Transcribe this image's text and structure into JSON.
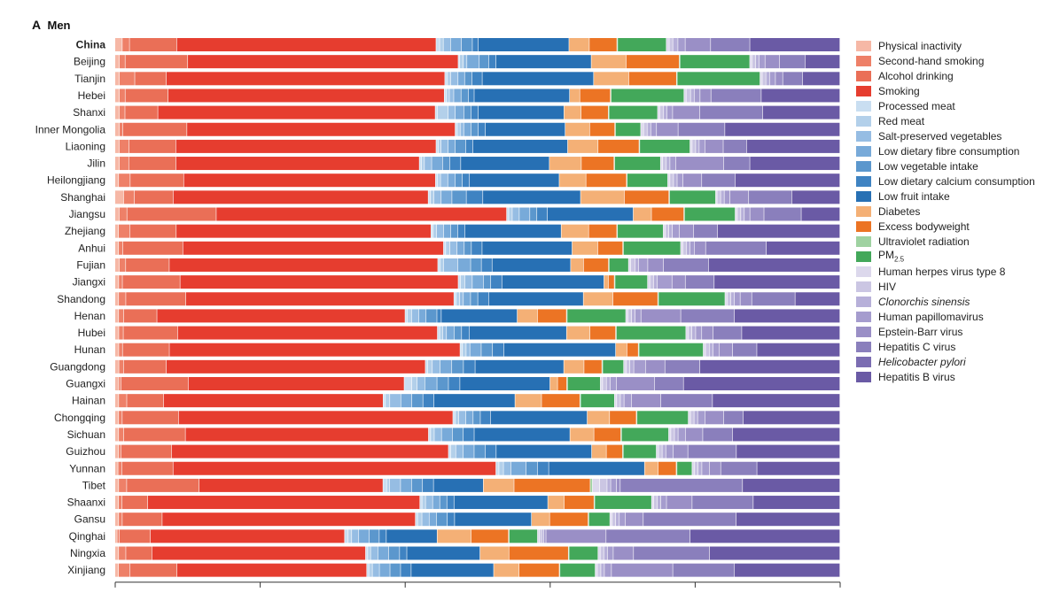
{
  "panel": {
    "letter": "A",
    "title": "Men"
  },
  "colors": {
    "Physical inactivity": "#f6b8a6",
    "Second-hand smoking": "#ee8068",
    "Alcohol drinking": "#ea6f57",
    "Smoking": "#e63d2f",
    "Processed meat": "#c9def1",
    "Red meat": "#b3d0ea",
    "Salt-preserved vegetables": "#96bde3",
    "Low dietary fibre consumption": "#78aad9",
    "Low vegetable intake": "#5b97cd",
    "Low dietary calcium consumption": "#3f83c2",
    "Low fruit intake": "#2770b4",
    "Diabetes": "#f4b076",
    "Excess bodyweight": "#ec7424",
    "Ultraviolet radiation": "#9fd2a1",
    "PM2.5": "#43a85a",
    "Human herpes virus type 8": "#dcd8ec",
    "HIV": "#cbc6e3",
    "Clonorchis sinensis": "#b7b0d9",
    "Human papillomavirus": "#a59cce",
    "Epstein-Barr virus": "#9a8fc6",
    "Hepatitis C virus": "#8a7fbc",
    "Helicobacter pylori": "#7b6db2",
    "Hepatitis B virus": "#6a5aa5"
  },
  "legend": [
    {
      "key": "Physical inactivity",
      "label": "Physical inactivity"
    },
    {
      "key": "Second-hand smoking",
      "label": "Second-hand smoking"
    },
    {
      "key": "Alcohol drinking",
      "label": "Alcohol drinking"
    },
    {
      "key": "Smoking",
      "label": "Smoking"
    },
    {
      "key": "Processed meat",
      "label": "Processed meat"
    },
    {
      "key": "Red meat",
      "label": "Red meat"
    },
    {
      "key": "Salt-preserved vegetables",
      "label": "Salt-preserved vegetables"
    },
    {
      "key": "Low dietary fibre consumption",
      "label": "Low dietary fibre consumption"
    },
    {
      "key": "Low vegetable intake",
      "label": "Low vegetable intake"
    },
    {
      "key": "Low dietary calcium consumption",
      "label": "Low dietary calcium consumption"
    },
    {
      "key": "Low fruit intake",
      "label": "Low fruit intake"
    },
    {
      "key": "Diabetes",
      "label": "Diabetes"
    },
    {
      "key": "Excess bodyweight",
      "label": "Excess bodyweight"
    },
    {
      "key": "Ultraviolet radiation",
      "label": "Ultraviolet radiation"
    },
    {
      "key": "PM2.5",
      "label": "PM",
      "sub": "2.5"
    },
    {
      "key": "Human herpes virus type 8",
      "label": "Human herpes virus type 8"
    },
    {
      "key": "HIV",
      "label": "HIV"
    },
    {
      "key": "Clonorchis sinensis",
      "label": "Clonorchis sinensis",
      "italic": true
    },
    {
      "key": "Human papillomavirus",
      "label": "Human papillomavirus"
    },
    {
      "key": "Epstein-Barr virus",
      "label": "Epstein-Barr virus"
    },
    {
      "key": "Hepatitis C virus",
      "label": "Hepatitis C virus"
    },
    {
      "key": "Helicobacter pylori",
      "label": "Helicobacter pylori",
      "italic": true
    },
    {
      "key": "Hepatitis B virus",
      "label": "Hepatitis B virus"
    }
  ],
  "chart_data": {
    "type": "bar",
    "orientation": "horizontal",
    "stacked": true,
    "xlim": [
      0,
      100
    ],
    "xticks": [
      0,
      20,
      40,
      60,
      80,
      100
    ],
    "xtick_labels_shown": false,
    "categories": [
      "China",
      "Beijing",
      "Tianjin",
      "Hebei",
      "Shanxi",
      "Inner Mongolia",
      "Liaoning",
      "Jilin",
      "Heilongjiang",
      "Shanghai",
      "Jiangsu",
      "Zhejiang",
      "Anhui",
      "Fujian",
      "Jiangxi",
      "Shandong",
      "Henan",
      "Hubei",
      "Hunan",
      "Guangdong",
      "Guangxi",
      "Hainan",
      "Chongqing",
      "Sichuan",
      "Guizhou",
      "Yunnan",
      "Tibet",
      "Shaanxi",
      "Gansu",
      "Qinghai",
      "Ningxia",
      "Xinjiang"
    ],
    "bold_categories": [
      "China"
    ],
    "series_order": [
      "Physical inactivity",
      "Second-hand smoking",
      "Alcohol drinking",
      "Smoking",
      "Processed meat",
      "Red meat",
      "Salt-preserved vegetables",
      "Low dietary fibre consumption",
      "Low vegetable intake",
      "Low dietary calcium consumption",
      "Low fruit intake",
      "Diabetes",
      "Excess bodyweight",
      "Ultraviolet radiation",
      "PM2.5",
      "Human herpes virus type 8",
      "HIV",
      "Clonorchis sinensis",
      "Human papillomavirus",
      "Epstein-Barr virus",
      "Hepatitis C virus",
      "Helicobacter pylori",
      "Hepatitis B virus"
    ],
    "rows": [
      [
        1.0,
        1.0,
        6.5,
        35.7,
        0.5,
        0.5,
        1.0,
        1.5,
        1.5,
        0.8,
        12.5,
        2.8,
        3.8,
        0.1,
        6.7,
        0.4,
        0.5,
        0.7,
        1.0,
        3.5,
        5.4,
        0.0,
        12.4
      ],
      [
        0.6,
        0.8,
        8.6,
        37.2,
        0.2,
        0.5,
        0.5,
        1.7,
        1.3,
        1.0,
        13.1,
        4.8,
        7.3,
        0.1,
        9.6,
        0.3,
        0.5,
        0.5,
        0.8,
        2.0,
        3.5,
        0.0,
        4.8
      ],
      [
        0.6,
        2.1,
        4.3,
        38.0,
        0.3,
        0.5,
        1.0,
        0.9,
        1.0,
        1.4,
        15.2,
        4.8,
        6.5,
        0.1,
        11.3,
        0.3,
        0.5,
        0.5,
        0.8,
        1.0,
        2.7,
        0.0,
        5.1
      ],
      [
        0.6,
        0.8,
        5.9,
        37.9,
        0.3,
        0.4,
        0.6,
        1.0,
        1.0,
        0.8,
        13.1,
        1.4,
        4.2,
        0.1,
        10.0,
        0.3,
        0.6,
        0.5,
        0.8,
        1.5,
        6.9,
        0.0,
        10.8
      ],
      [
        0.6,
        0.8,
        4.6,
        38.8,
        0.3,
        1.5,
        1.0,
        1.2,
        1.0,
        1.0,
        12.0,
        2.4,
        3.8,
        0.1,
        6.8,
        0.3,
        0.5,
        0.5,
        0.8,
        3.8,
        8.8,
        0.0,
        10.8
      ],
      [
        0.6,
        0.5,
        8.9,
        37.3,
        0.3,
        0.4,
        0.5,
        1.0,
        1.0,
        1.0,
        11.1,
        3.4,
        3.5,
        0.1,
        3.5,
        0.4,
        0.5,
        0.5,
        0.8,
        3.0,
        6.5,
        0.0,
        16.0
      ],
      [
        0.6,
        1.4,
        6.6,
        36.8,
        0.3,
        0.4,
        1.0,
        1.0,
        1.5,
        1.0,
        13.4,
        4.3,
        5.8,
        0.1,
        7.1,
        0.3,
        0.5,
        0.5,
        0.8,
        2.6,
        3.3,
        0.0,
        13.2
      ],
      [
        0.6,
        1.3,
        6.5,
        33.5,
        0.3,
        0.4,
        1.0,
        1.5,
        1.0,
        1.5,
        12.2,
        4.4,
        4.5,
        0.1,
        6.3,
        0.3,
        0.5,
        0.5,
        0.8,
        6.6,
        3.6,
        0.0,
        12.4
      ],
      [
        0.5,
        1.6,
        7.4,
        34.8,
        0.3,
        0.4,
        1.0,
        1.0,
        1.0,
        1.0,
        12.4,
        3.7,
        5.6,
        0.1,
        5.6,
        0.3,
        0.5,
        0.5,
        0.8,
        2.6,
        4.6,
        0.0,
        14.5
      ],
      [
        1.2,
        1.5,
        5.4,
        35.5,
        0.3,
        0.5,
        1.0,
        1.5,
        2.0,
        2.3,
        13.6,
        6.1,
        6.2,
        0.1,
        6.4,
        0.2,
        0.5,
        0.5,
        0.8,
        2.6,
        6.0,
        0.0,
        6.7
      ],
      [
        0.6,
        1.1,
        12.7,
        41.3,
        0.3,
        0.5,
        1.0,
        1.5,
        1.0,
        1.5,
        12.2,
        2.6,
        4.6,
        0.1,
        7.2,
        0.3,
        0.5,
        0.5,
        0.8,
        2.0,
        5.3,
        0.0,
        5.5
      ],
      [
        0.5,
        1.6,
        6.6,
        36.2,
        0.3,
        0.5,
        1.0,
        1.0,
        1.0,
        1.0,
        13.7,
        3.9,
        4.0,
        0.1,
        6.5,
        0.3,
        0.5,
        0.5,
        1.0,
        2.0,
        3.4,
        0.0,
        17.4
      ],
      [
        0.5,
        0.6,
        8.4,
        36.5,
        0.3,
        0.6,
        1.0,
        1.0,
        1.0,
        1.5,
        12.6,
        3.6,
        3.5,
        0.1,
        8.0,
        0.3,
        0.5,
        0.5,
        0.6,
        1.6,
        8.5,
        0.0,
        10.3
      ],
      [
        0.6,
        0.9,
        6.1,
        37.6,
        0.3,
        0.5,
        2.0,
        1.8,
        1.5,
        1.5,
        11.0,
        1.8,
        3.5,
        0.1,
        2.7,
        0.3,
        0.6,
        0.5,
        1.3,
        2.2,
        6.3,
        0.0,
        18.4
      ],
      [
        0.5,
        0.5,
        7.8,
        37.6,
        0.3,
        0.6,
        1.0,
        1.5,
        1.0,
        1.5,
        13.8,
        0.6,
        0.8,
        0.1,
        4.4,
        0.3,
        0.5,
        0.5,
        2.0,
        1.8,
        3.9,
        0.0,
        17.0
      ],
      [
        0.5,
        1.0,
        8.3,
        37.1,
        0.3,
        0.5,
        0.5,
        1.0,
        1.0,
        1.5,
        13.1,
        4.1,
        6.2,
        0.1,
        9.2,
        0.3,
        0.5,
        0.5,
        0.8,
        1.6,
        6.0,
        0.0,
        6.2
      ],
      [
        0.5,
        0.7,
        4.6,
        34.3,
        0.3,
        0.6,
        1.0,
        1.0,
        1.5,
        0.6,
        10.5,
        2.8,
        4.0,
        0.1,
        8.1,
        0.3,
        0.5,
        0.5,
        0.8,
        5.5,
        7.4,
        0.0,
        14.6
      ],
      [
        0.5,
        0.6,
        7.2,
        34.4,
        0.3,
        0.4,
        0.5,
        1.0,
        1.0,
        1.0,
        12.9,
        3.1,
        3.4,
        0.1,
        9.2,
        0.3,
        0.5,
        0.5,
        0.8,
        1.5,
        3.8,
        0.0,
        13.0
      ],
      [
        0.5,
        0.5,
        6.2,
        38.5,
        0.3,
        0.5,
        0.5,
        1.5,
        1.5,
        1.5,
        14.8,
        1.5,
        1.5,
        0.1,
        8.5,
        0.3,
        0.5,
        0.5,
        0.8,
        1.8,
        3.2,
        0.0,
        11.0
      ],
      [
        0.5,
        0.6,
        5.5,
        33.3,
        0.3,
        0.6,
        1.0,
        1.5,
        1.5,
        1.5,
        11.4,
        2.6,
        2.3,
        0.1,
        2.7,
        0.3,
        0.5,
        0.5,
        1.5,
        2.5,
        4.5,
        0.0,
        18.0
      ],
      [
        0.5,
        0.3,
        8.8,
        28.3,
        1.0,
        0.7,
        1.0,
        1.6,
        1.5,
        1.5,
        11.8,
        1.0,
        1.2,
        0.1,
        4.3,
        0.3,
        0.5,
        0.5,
        0.8,
        5.0,
        3.8,
        0.0,
        20.5
      ],
      [
        0.5,
        1.1,
        5.0,
        29.8,
        0.3,
        0.6,
        1.5,
        1.5,
        1.5,
        1.5,
        11.0,
        3.6,
        5.2,
        0.1,
        4.6,
        0.3,
        0.5,
        0.5,
        1.0,
        4.0,
        7.0,
        0.0,
        17.3
      ],
      [
        0.5,
        0.5,
        7.8,
        38.0,
        0.3,
        0.5,
        1.0,
        1.0,
        1.0,
        1.4,
        13.4,
        3.1,
        3.7,
        0.1,
        7.1,
        0.3,
        0.5,
        0.5,
        1.0,
        2.6,
        2.7,
        0.0,
        13.4
      ],
      [
        0.5,
        0.7,
        8.5,
        33.5,
        0.3,
        0.5,
        1.0,
        1.5,
        1.5,
        1.5,
        13.2,
        3.3,
        3.7,
        0.1,
        6.5,
        0.3,
        0.5,
        0.5,
        1.0,
        2.4,
        4.1,
        0.0,
        14.8
      ],
      [
        0.5,
        0.3,
        6.9,
        37.7,
        0.3,
        0.7,
        1.0,
        1.5,
        1.5,
        1.5,
        13.0,
        2.0,
        2.2,
        0.1,
        4.5,
        0.3,
        0.5,
        0.5,
        1.0,
        2.0,
        6.6,
        0.0,
        14.1
      ],
      [
        0.4,
        0.5,
        6.8,
        42.8,
        0.4,
        0.6,
        1.0,
        2.0,
        1.5,
        1.5,
        12.7,
        1.8,
        2.4,
        0.1,
        2.0,
        0.3,
        0.5,
        0.5,
        1.0,
        1.5,
        4.8,
        0.0,
        11.0
      ],
      [
        0.5,
        1.1,
        9.9,
        25.1,
        0.5,
        0.4,
        1.5,
        1.5,
        1.5,
        1.5,
        6.8,
        4.2,
        10.4,
        0.3,
        0.0,
        1.0,
        1.0,
        0.5,
        0.8,
        0.5,
        16.7,
        0.0,
        13.3
      ],
      [
        0.5,
        0.5,
        3.6,
        38.3,
        0.3,
        0.5,
        1.0,
        1.0,
        1.0,
        1.0,
        13.2,
        2.3,
        4.2,
        0.1,
        8.0,
        0.3,
        0.5,
        0.5,
        0.8,
        3.6,
        8.6,
        0.0,
        12.2
      ],
      [
        0.5,
        0.5,
        5.5,
        34.9,
        0.3,
        0.6,
        1.0,
        1.0,
        1.5,
        1.0,
        10.6,
        2.5,
        5.3,
        0.1,
        2.9,
        0.3,
        0.5,
        0.5,
        0.8,
        2.5,
        12.8,
        0.0,
        14.3
      ],
      [
        0.3,
        0.3,
        4.4,
        27.5,
        0.5,
        0.5,
        1.0,
        1.5,
        1.4,
        1.0,
        7.2,
        4.8,
        5.3,
        0.1,
        4.0,
        0.3,
        0.3,
        0.3,
        0.3,
        8.5,
        11.9,
        0.0,
        21.2
      ],
      [
        0.5,
        1.0,
        3.6,
        29.5,
        0.3,
        0.4,
        1.0,
        1.5,
        1.5,
        1.0,
        10.1,
        4.0,
        8.2,
        0.1,
        4.0,
        0.3,
        0.5,
        0.5,
        0.8,
        2.8,
        10.5,
        0.0,
        18.0
      ],
      [
        0.5,
        1.6,
        6.7,
        26.9,
        0.3,
        0.5,
        1.0,
        1.5,
        1.5,
        1.5,
        11.7,
        3.6,
        5.7,
        0.1,
        5.0,
        0.3,
        0.5,
        0.5,
        1.0,
        8.7,
        8.7,
        0.0,
        15.0
      ]
    ]
  }
}
